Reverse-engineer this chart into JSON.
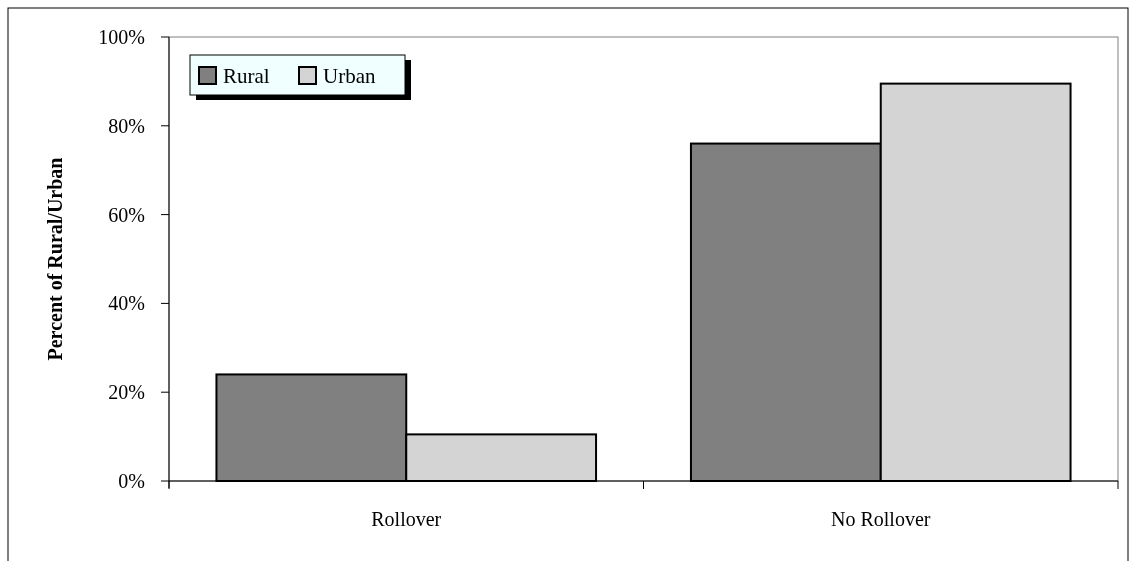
{
  "chart_data": {
    "type": "bar",
    "ylabel": "Percent of Rural/Urban",
    "categories": [
      "Rollover",
      "No Rollover"
    ],
    "series": [
      {
        "name": "Rural",
        "color": "#808080",
        "values": [
          24,
          76
        ]
      },
      {
        "name": "Urban",
        "color": "#d4d4d4",
        "values": [
          10.5,
          89.5
        ]
      }
    ],
    "ylim": [
      0,
      100
    ],
    "yticks": [
      {
        "value": 0,
        "label": "0%"
      },
      {
        "value": 20,
        "label": "20%"
      },
      {
        "value": 40,
        "label": "40%"
      },
      {
        "value": 60,
        "label": "60%"
      },
      {
        "value": 80,
        "label": "80%"
      },
      {
        "value": 100,
        "label": "100%"
      }
    ],
    "grid": false,
    "legend": "top left"
  }
}
